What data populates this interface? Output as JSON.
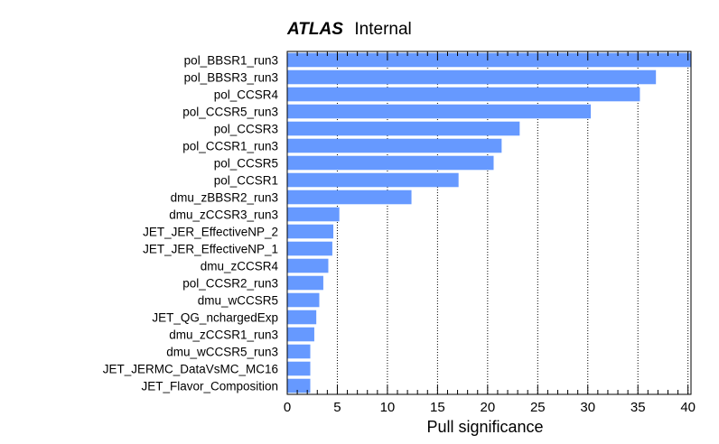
{
  "chart_data": {
    "type": "bar",
    "orientation": "horizontal",
    "title": {
      "bold_part": "ATLAS",
      "rest": "Internal"
    },
    "xlabel": "Pull significance",
    "ylabel": "",
    "xlim": [
      0,
      40.3
    ],
    "xticks": [
      0,
      5,
      10,
      15,
      20,
      25,
      30,
      35,
      40
    ],
    "grid": "vertical dotted",
    "bar_color": "#6699ff",
    "categories": [
      "pol_BBSR1_run3",
      "pol_BBSR3_run3",
      "pol_CCSR4",
      "pol_CCSR5_run3",
      "pol_CCSR3",
      "pol_CCSR1_run3",
      "pol_CCSR5",
      "pol_CCSR1",
      "dmu_zBBSR2_run3",
      "dmu_zCCSR3_run3",
      "JET_JER_EffectiveNP_2",
      "JET_JER_EffectiveNP_1",
      "dmu_zCCSR4",
      "pol_CCSR2_run3",
      "dmu_wCCSR5",
      "JET_QG_nchargedExp",
      "dmu_zCCSR1_run3",
      "dmu_wCCSR5_run3",
      "JET_JERMC_DataVsMC_MC16",
      "JET_Flavor_Composition"
    ],
    "values": [
      40.3,
      36.8,
      35.2,
      30.3,
      23.2,
      21.4,
      20.6,
      17.1,
      12.4,
      5.2,
      4.6,
      4.5,
      4.1,
      3.6,
      3.2,
      2.9,
      2.7,
      2.3,
      2.3,
      2.3
    ]
  }
}
